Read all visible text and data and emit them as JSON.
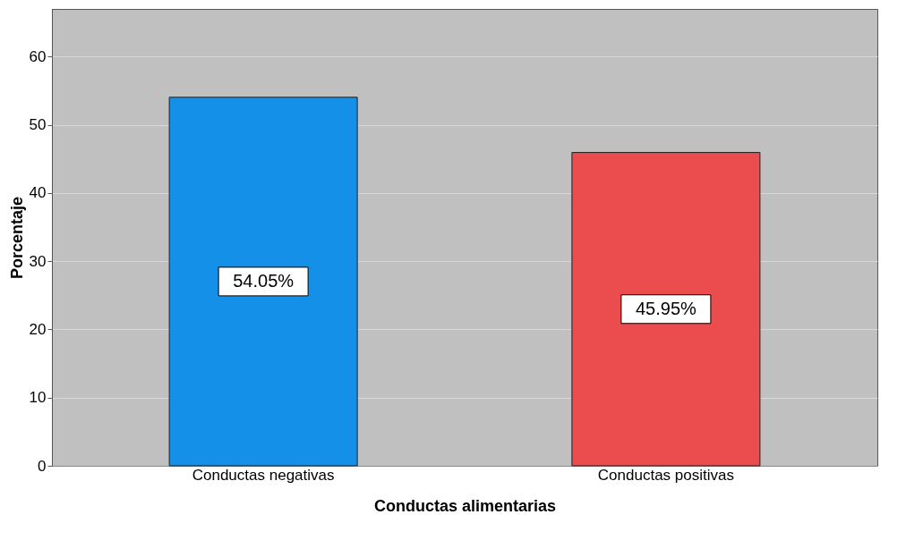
{
  "chart_data": {
    "type": "bar",
    "xlabel": "Conductas alimentarias",
    "ylabel": "Porcentaje",
    "categories": [
      "Conductas negativas",
      "Conductas positivas"
    ],
    "values": [
      54.05,
      45.95
    ],
    "colors": [
      "#1490e8",
      "#eb4c4e"
    ],
    "value_labels": [
      "54.05%",
      "45.95%"
    ],
    "ylim": [
      0,
      67
    ],
    "yticks": [
      0,
      10,
      20,
      30,
      40,
      50,
      60
    ],
    "grid": "y"
  }
}
